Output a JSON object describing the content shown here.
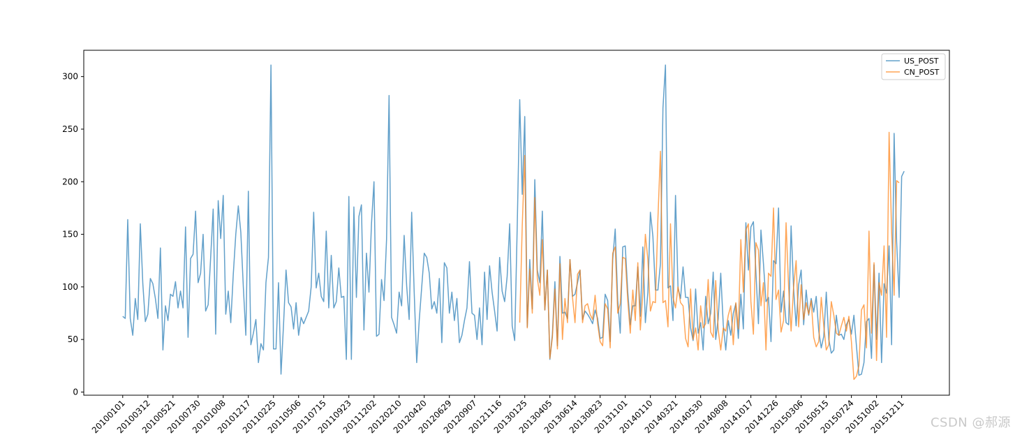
{
  "watermark": "CSDN @郝源",
  "colors": {
    "us": "#1f77b4",
    "cn": "#ff7f0e"
  },
  "chart_data": {
    "type": "line",
    "title": "",
    "xlabel": "",
    "ylabel": "",
    "ylim": [
      -3,
      325
    ],
    "xlim": [
      -15.5,
      329
    ],
    "grid": false,
    "legend_position": "top-right",
    "yticks": [
      0,
      50,
      100,
      150,
      200,
      250,
      300
    ],
    "xtick_labels": [
      "20100101",
      "20100312",
      "20100521",
      "20100730",
      "20101008",
      "20101217",
      "20110225",
      "20110506",
      "20110715",
      "20110923",
      "20111202",
      "20120210",
      "20120420",
      "20120629",
      "20120907",
      "20121116",
      "20130125",
      "20130405",
      "20130614",
      "20130823",
      "20131101",
      "20140110",
      "20140321",
      "20140530",
      "20140808",
      "20141017",
      "20141226",
      "20150306",
      "20150515",
      "20150724",
      "20151002",
      "20151211"
    ],
    "xtick_step": 10,
    "series": [
      {
        "name": "US_POST",
        "alpha": 0.7,
        "x_start": 0,
        "values": [
          72,
          70,
          164,
          70,
          54,
          89,
          69,
          160,
          103,
          67,
          74,
          108,
          103,
          89,
          70,
          137,
          40,
          82,
          68,
          93,
          91,
          105,
          80,
          96,
          80,
          157,
          52,
          127,
          131,
          172,
          104,
          113,
          150,
          77,
          83,
          128,
          174,
          55,
          182,
          146,
          187,
          74,
          96,
          66,
          112,
          150,
          177,
          152,
          100,
          54,
          191,
          45,
          56,
          69,
          28,
          46,
          40,
          104,
          128,
          311,
          41,
          41,
          104,
          17,
          64,
          116,
          85,
          81,
          60,
          85,
          54,
          71,
          65,
          71,
          77,
          100,
          171,
          99,
          113,
          91,
          86,
          153,
          80,
          130,
          80,
          86,
          118,
          90,
          91,
          31,
          186,
          31,
          176,
          90,
          167,
          178,
          59,
          132,
          95,
          160,
          200,
          53,
          55,
          107,
          87,
          145,
          282,
          71,
          64,
          56,
          95,
          82,
          149,
          101,
          69,
          171,
          95,
          28,
          68,
          100,
          132,
          128,
          113,
          79,
          86,
          75,
          108,
          47,
          123,
          118,
          75,
          95,
          68,
          89,
          47,
          54,
          68,
          80,
          124,
          75,
          73,
          50,
          80,
          45,
          114,
          69,
          120,
          95,
          77,
          58,
          128,
          96,
          86,
          110,
          160,
          63,
          49,
          157,
          278,
          188,
          262,
          62,
          126,
          79,
          202,
          116,
          104,
          172,
          78,
          116,
          31,
          55,
          105,
          44,
          129,
          75,
          76,
          70,
          126,
          91,
          93,
          104,
          116,
          69,
          77,
          74,
          70,
          65,
          78,
          70,
          51,
          52,
          93,
          87,
          48,
          126,
          155,
          87,
          56,
          138,
          139,
          95,
          64,
          82,
          82,
          119,
          72,
          138,
          66,
          95,
          171,
          148,
          97,
          97,
          122,
          270,
          311,
          99,
          101,
          68,
          187,
          99,
          89,
          119,
          90,
          90,
          61,
          49,
          98,
          56,
          66,
          40,
          91,
          65,
          75,
          114,
          50,
          70,
          113,
          64,
          40,
          68,
          54,
          75,
          84,
          51,
          93,
          60,
          161,
          116,
          157,
          162,
          114,
          65,
          154,
          122,
          86,
          90,
          48,
          125,
          122,
          175,
          76,
          96,
          66,
          64,
          158,
          98,
          63,
          102,
          116,
          64,
          97,
          73,
          89,
          76,
          91,
          58,
          42,
          53,
          95,
          50,
          37,
          40,
          73,
          54,
          55,
          50,
          64,
          69,
          55,
          73,
          44,
          16,
          17,
          28,
          67,
          70,
          32,
          121,
          50,
          113,
          28,
          103,
          94,
          139,
          45,
          246,
          143,
          90,
          205,
          210
        ]
      },
      {
        "name": "CN_POST",
        "alpha": 0.7,
        "x_start": 158,
        "values": [
          66,
          158,
          225,
          61,
          117,
          75,
          185,
          108,
          92,
          145,
          78,
          116,
          32,
          52,
          98,
          41,
          122,
          50,
          89,
          66,
          126,
          90,
          66,
          112,
          116,
          66,
          82,
          84,
          74,
          69,
          92,
          65,
          48,
          44,
          84,
          79,
          42,
          132,
          138,
          75,
          84,
          128,
          127,
          87,
          56,
          97,
          68,
          123,
          59,
          94,
          150,
          126,
          77,
          86,
          85,
          165,
          229,
          85,
          87,
          62,
          160,
          90,
          80,
          100,
          85,
          82,
          51,
          43,
          98,
          50,
          61,
          40,
          82,
          61,
          65,
          107,
          57,
          52,
          106,
          59,
          40,
          61,
          58,
          73,
          82,
          45,
          85,
          60,
          145,
          95,
          154,
          160,
          86,
          55,
          142,
          135,
          82,
          104,
          40,
          113,
          110,
          175,
          88,
          97,
          57,
          68,
          161,
          100,
          58,
          100,
          125,
          62,
          102,
          69,
          85,
          74,
          87,
          52,
          43,
          48,
          90,
          63,
          40,
          45,
          86,
          73,
          56,
          54,
          63,
          71,
          58,
          72,
          48,
          12,
          15,
          25,
          78,
          83,
          42,
          153,
          56,
          123,
          30,
          104,
          92,
          139,
          52,
          247,
          152,
          92,
          201,
          199
        ]
      }
    ]
  }
}
